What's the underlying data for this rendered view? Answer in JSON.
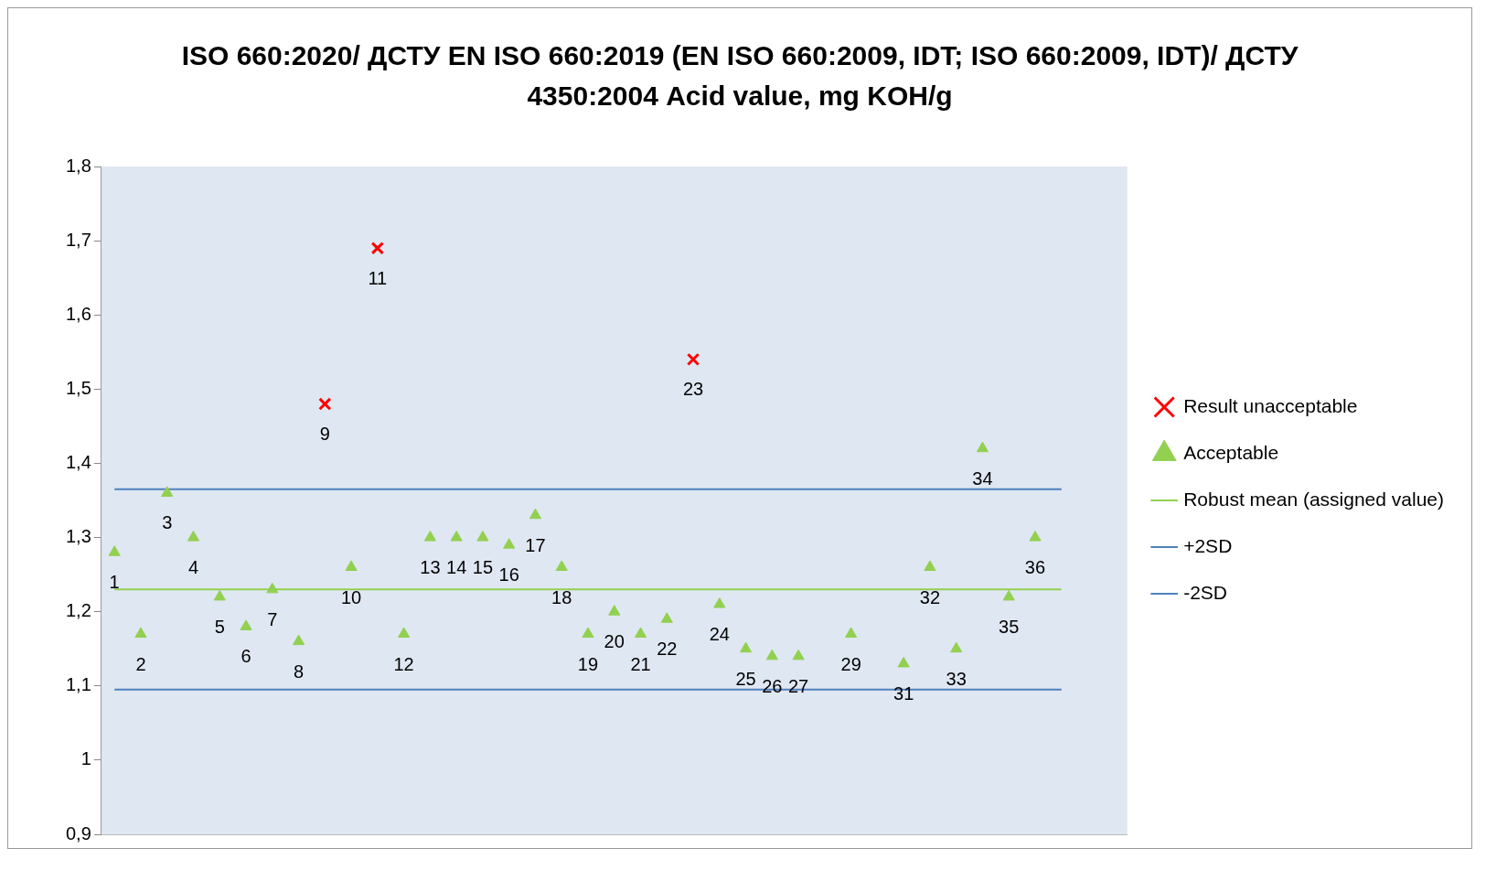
{
  "chart_data": {
    "type": "scatter",
    "title": "ISO 660:2020/ ДСТУ EN ISO 660:2019 (EN ISO 660:2009, IDT; ISO 660:2009, IDT)/ ДСТУ 4350:2004 Acid value, mg KOH/g",
    "categories": [
      "1",
      "2",
      "3",
      "4",
      "5",
      "6",
      "7",
      "8",
      "9",
      "10",
      "11",
      "12",
      "13",
      "14",
      "15",
      "16",
      "17",
      "18",
      "19",
      "20",
      "21",
      "22",
      "23",
      "24",
      "25",
      "26",
      "27",
      null,
      "29",
      null,
      "31",
      "32",
      "33",
      "34",
      "35",
      "36",
      null,
      null,
      null
    ],
    "ylim": [
      0.9,
      1.8
    ],
    "yticks": [
      {
        "value": 0.9,
        "label": "0,9"
      },
      1,
      {
        "value": 1.1,
        "label": "1,1"
      },
      {
        "value": 1.2,
        "label": "1,2"
      },
      {
        "value": 1.3,
        "label": "1,3"
      },
      {
        "value": 1.4,
        "label": "1,4"
      },
      {
        "value": 1.5,
        "label": "1,5"
      },
      {
        "value": 1.6,
        "label": "1,6"
      },
      {
        "value": 1.7,
        "label": "1,7"
      },
      {
        "value": 1.8,
        "label": "1,8"
      }
    ],
    "grid": false,
    "legend": "right",
    "tick_labels": "y",
    "series": [
      {
        "name": "Result unacceptable",
        "type": "scatter",
        "marker": "cross",
        "color": "#ff0000",
        "values": [
          null,
          null,
          null,
          null,
          null,
          null,
          null,
          null,
          1.48,
          null,
          1.69,
          null,
          null,
          null,
          null,
          null,
          null,
          null,
          null,
          null,
          null,
          null,
          1.54,
          null,
          null,
          null,
          null,
          null,
          null,
          null,
          null,
          null,
          null,
          null,
          null,
          null,
          null,
          null,
          null
        ]
      },
      {
        "name": "Acceptable",
        "type": "scatter",
        "marker": "triangle",
        "color": "#92d050",
        "values": [
          1.28,
          1.17,
          1.36,
          1.3,
          1.22,
          1.18,
          1.23,
          1.16,
          null,
          1.26,
          null,
          1.17,
          1.3,
          1.3,
          1.3,
          1.29,
          1.33,
          1.26,
          1.17,
          1.2,
          1.17,
          1.19,
          null,
          1.21,
          1.15,
          1.14,
          1.14,
          null,
          1.17,
          null,
          1.13,
          1.26,
          1.15,
          1.42,
          1.22,
          1.3,
          null,
          null,
          null
        ]
      },
      {
        "name": "Robust mean (assigned value)",
        "type": "line",
        "marker": "none",
        "color": "#92d050",
        "values": [
          1.23,
          1.23,
          1.23,
          1.23,
          1.23,
          1.23,
          1.23,
          1.23,
          1.23,
          1.23,
          1.23,
          1.23,
          1.23,
          1.23,
          1.23,
          1.23,
          1.23,
          1.23,
          1.23,
          1.23,
          1.23,
          1.23,
          1.23,
          1.23,
          1.23,
          1.23,
          1.23,
          1.23,
          1.23,
          1.23,
          1.23,
          1.23,
          1.23,
          1.23,
          1.23,
          1.23,
          1.23,
          null,
          null
        ]
      },
      {
        "name": "+2SD",
        "type": "line",
        "marker": "none",
        "color": "#4f81bd",
        "values": [
          1.365,
          1.365,
          1.365,
          1.365,
          1.365,
          1.365,
          1.365,
          1.365,
          1.365,
          1.365,
          1.365,
          1.365,
          1.365,
          1.365,
          1.365,
          1.365,
          1.365,
          1.365,
          1.365,
          1.365,
          1.365,
          1.365,
          1.365,
          1.365,
          1.365,
          1.365,
          1.365,
          1.365,
          1.365,
          1.365,
          1.365,
          1.365,
          1.365,
          1.365,
          1.365,
          1.365,
          1.365,
          null,
          null
        ]
      },
      {
        "name": "-2SD",
        "type": "line",
        "marker": "none",
        "color": "#4f81bd",
        "values": [
          1.095,
          1.095,
          1.095,
          1.095,
          1.095,
          1.095,
          1.095,
          1.095,
          1.095,
          1.095,
          1.095,
          1.095,
          1.095,
          1.095,
          1.095,
          1.095,
          1.095,
          1.095,
          1.095,
          1.095,
          1.095,
          1.095,
          1.095,
          1.095,
          1.095,
          1.095,
          1.095,
          1.095,
          1.095,
          1.095,
          1.095,
          1.095,
          1.095,
          1.095,
          1.095,
          1.095,
          1.095,
          null,
          null
        ]
      }
    ]
  }
}
